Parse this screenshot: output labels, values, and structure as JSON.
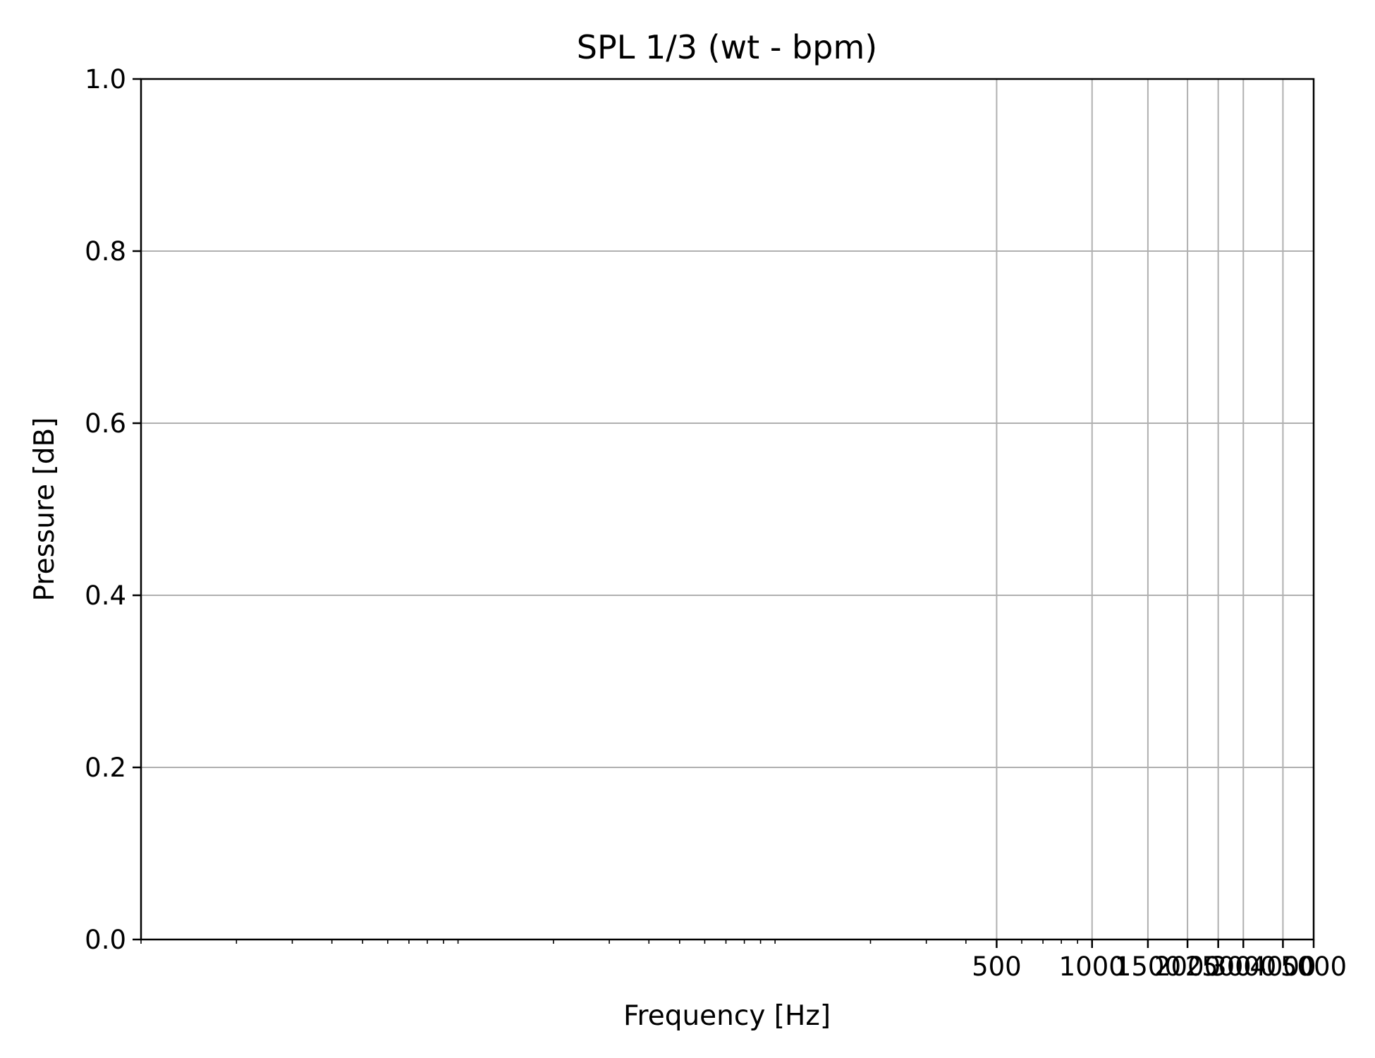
{
  "chart_data": {
    "type": "line",
    "title": "SPL 1/3 (wt - bpm)",
    "xlabel": "Frequency [Hz]",
    "ylabel": "Pressure [dB]",
    "x_scale": "log",
    "xlim": [
      1,
      5000
    ],
    "ylim": [
      0,
      1
    ],
    "x_ticks": [
      500,
      1000,
      1500,
      2000,
      2500,
      3000,
      4000,
      5000
    ],
    "x_tick_labels": [
      "500",
      "1000",
      "1500",
      "2000",
      "2500",
      "3000",
      "4000",
      "5000"
    ],
    "y_ticks": [
      0,
      0.2,
      0.4,
      0.6,
      0.8,
      1.0
    ],
    "y_tick_labels": [
      "0.0",
      "0.2",
      "0.4",
      "0.6",
      "0.8",
      "1.0"
    ],
    "grid": true,
    "series": [],
    "colors": {
      "grid": "#b0b0b0",
      "axes": "#000000",
      "background": "#ffffff"
    }
  }
}
